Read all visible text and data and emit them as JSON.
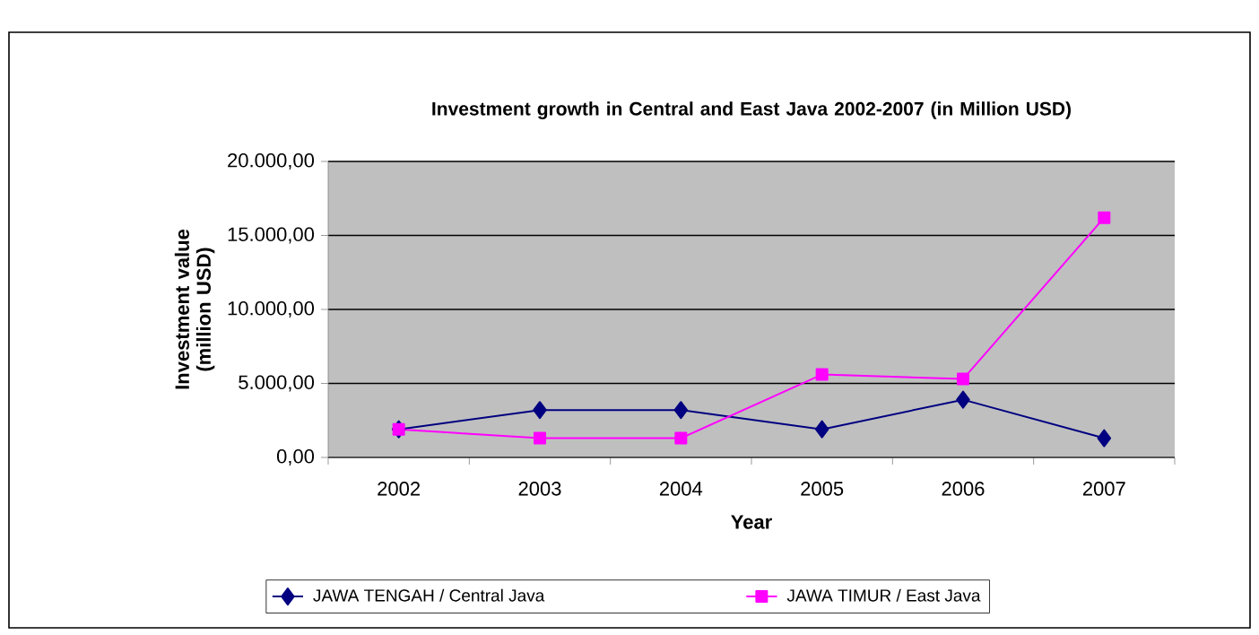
{
  "chart_data": {
    "type": "line",
    "title": "Investment growth in Central and East Java 2002-2007 (in Million USD)",
    "xlabel": "Year",
    "ylabel": "Investment value (million USD)",
    "categories": [
      "2002",
      "2003",
      "2004",
      "2005",
      "2006",
      "2007"
    ],
    "series": [
      {
        "name": "JAWA TENGAH / Central Java",
        "color": "#000080",
        "marker": "diamond",
        "values": [
          1900,
          3200,
          3200,
          1900,
          3900,
          1300
        ]
      },
      {
        "name": "JAWA TIMUR / East Java",
        "color": "#ff00ff",
        "marker": "square",
        "values": [
          1900,
          1300,
          1300,
          5600,
          5300,
          16200
        ]
      }
    ],
    "ylim": [
      0,
      20000
    ],
    "yticks": [
      {
        "value": 0,
        "label": "0,00"
      },
      {
        "value": 5000,
        "label": "5.000,00"
      },
      {
        "value": 10000,
        "label": "10.000,00"
      },
      {
        "value": 15000,
        "label": "15.000,00"
      },
      {
        "value": 20000,
        "label": "20.000,00"
      }
    ],
    "grid": "y",
    "legend": "bottom",
    "line_style": "solid"
  }
}
